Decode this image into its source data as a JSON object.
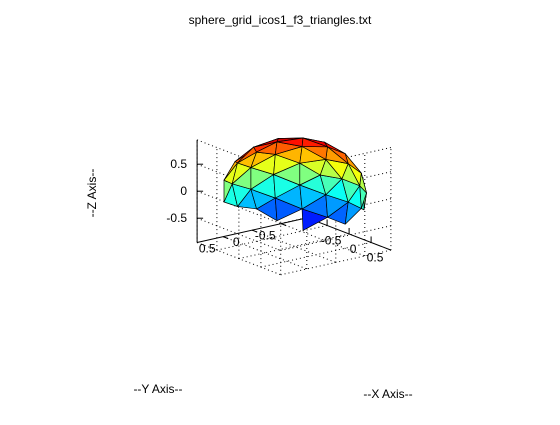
{
  "chart_data": {
    "type": "3d-surface",
    "title": "sphere_grid_icos1_f3_triangles.txt",
    "xlabel": "--X Axis--",
    "ylabel": "--Y Axis--",
    "zlabel": "--Z Axis--",
    "xlim": [
      -0.95,
      0.95
    ],
    "ylim": [
      -0.95,
      0.95
    ],
    "zlim": [
      -0.95,
      0.95
    ],
    "x_ticks": [
      "-0.5",
      "0",
      "0.5"
    ],
    "y_ticks": [
      "0.5",
      "0",
      "-0.5"
    ],
    "z_ticks": [
      "0.5",
      "0",
      "-0.5"
    ],
    "grid": true,
    "colormap": "jet",
    "mesh": "icosahedron subdivided 3x (180 triangles) on unit sphere",
    "face_color_by": "z",
    "edge_color": "#000000"
  }
}
